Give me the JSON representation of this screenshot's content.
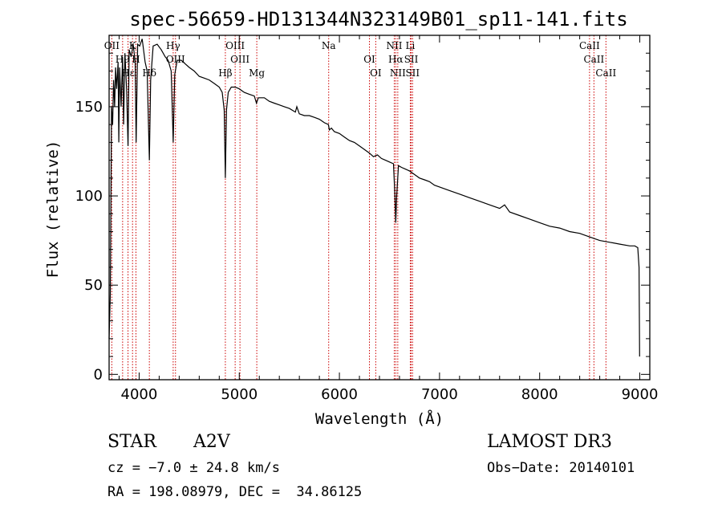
{
  "chart_data": {
    "type": "line",
    "title": "spec-56659-HD131344N323149B01_sp11-141.fits",
    "xlabel": "Wavelength (Å)",
    "ylabel": "Flux (relative)",
    "xlim": [
      3700,
      9100
    ],
    "ylim": [
      -3,
      190
    ],
    "xticks": [
      4000,
      5000,
      6000,
      7000,
      8000,
      9000
    ],
    "yticks": [
      0,
      50,
      100,
      150
    ],
    "series": [
      {
        "name": "spectrum",
        "points": [
          [
            3700,
            20
          ],
          [
            3712,
            45
          ],
          [
            3724,
            150
          ],
          [
            3735,
            140
          ],
          [
            3745,
            165
          ],
          [
            3755,
            150
          ],
          [
            3765,
            172
          ],
          [
            3775,
            160
          ],
          [
            3790,
            175
          ],
          [
            3797,
            130
          ],
          [
            3805,
            172
          ],
          [
            3820,
            150
          ],
          [
            3835,
            178
          ],
          [
            3845,
            140
          ],
          [
            3858,
            180
          ],
          [
            3875,
            160
          ],
          [
            3889,
            128
          ],
          [
            3900,
            182
          ],
          [
            3920,
            178
          ],
          [
            3940,
            185
          ],
          [
            3960,
            175
          ],
          [
            3970,
            130
          ],
          [
            3985,
            185
          ],
          [
            4005,
            184
          ],
          [
            4030,
            188
          ],
          [
            4060,
            175
          ],
          [
            4080,
            170
          ],
          [
            4102,
            120
          ],
          [
            4115,
            165
          ],
          [
            4140,
            184
          ],
          [
            4180,
            185
          ],
          [
            4220,
            182
          ],
          [
            4260,
            178
          ],
          [
            4290,
            176
          ],
          [
            4320,
            170
          ],
          [
            4340,
            130
          ],
          [
            4355,
            168
          ],
          [
            4380,
            176
          ],
          [
            4420,
            176
          ],
          [
            4460,
            174
          ],
          [
            4500,
            172
          ],
          [
            4550,
            170
          ],
          [
            4600,
            167
          ],
          [
            4650,
            166
          ],
          [
            4700,
            165
          ],
          [
            4750,
            163
          ],
          [
            4800,
            161
          ],
          [
            4830,
            158
          ],
          [
            4850,
            148
          ],
          [
            4861,
            110
          ],
          [
            4872,
            148
          ],
          [
            4890,
            158
          ],
          [
            4920,
            161
          ],
          [
            4960,
            161
          ],
          [
            5000,
            160
          ],
          [
            5050,
            158
          ],
          [
            5100,
            157
          ],
          [
            5150,
            156
          ],
          [
            5172,
            152
          ],
          [
            5190,
            155
          ],
          [
            5250,
            155
          ],
          [
            5300,
            153
          ],
          [
            5350,
            152
          ],
          [
            5400,
            151
          ],
          [
            5450,
            150
          ],
          [
            5500,
            149
          ],
          [
            5560,
            147
          ],
          [
            5575,
            150
          ],
          [
            5600,
            146
          ],
          [
            5650,
            145
          ],
          [
            5700,
            145
          ],
          [
            5750,
            144
          ],
          [
            5800,
            143
          ],
          [
            5850,
            141
          ],
          [
            5890,
            140
          ],
          [
            5900,
            137
          ],
          [
            5920,
            138
          ],
          [
            5950,
            136
          ],
          [
            6000,
            135
          ],
          [
            6050,
            133
          ],
          [
            6100,
            131
          ],
          [
            6150,
            130
          ],
          [
            6200,
            128
          ],
          [
            6250,
            126
          ],
          [
            6300,
            124
          ],
          [
            6340,
            122
          ],
          [
            6380,
            123
          ],
          [
            6420,
            121
          ],
          [
            6460,
            120
          ],
          [
            6500,
            119
          ],
          [
            6540,
            118
          ],
          [
            6555,
            100
          ],
          [
            6563,
            85
          ],
          [
            6572,
            100
          ],
          [
            6590,
            117
          ],
          [
            6620,
            116
          ],
          [
            6660,
            115
          ],
          [
            6700,
            114
          ],
          [
            6750,
            112
          ],
          [
            6800,
            110
          ],
          [
            6850,
            109
          ],
          [
            6900,
            108
          ],
          [
            6950,
            106
          ],
          [
            7000,
            105
          ],
          [
            7100,
            103
          ],
          [
            7200,
            101
          ],
          [
            7300,
            99
          ],
          [
            7400,
            97
          ],
          [
            7500,
            95
          ],
          [
            7600,
            93
          ],
          [
            7650,
            95
          ],
          [
            7700,
            91
          ],
          [
            7800,
            89
          ],
          [
            7900,
            87
          ],
          [
            8000,
            85
          ],
          [
            8100,
            83
          ],
          [
            8200,
            82
          ],
          [
            8300,
            80
          ],
          [
            8400,
            79
          ],
          [
            8500,
            77
          ],
          [
            8600,
            75
          ],
          [
            8700,
            74
          ],
          [
            8800,
            73
          ],
          [
            8900,
            72
          ],
          [
            8950,
            72
          ],
          [
            8980,
            71
          ],
          [
            8993,
            60
          ],
          [
            8998,
            10
          ]
        ]
      }
    ],
    "line_markers": [
      {
        "name": "OII",
        "wavelength": 3727
      },
      {
        "name": "H9",
        "wavelength": 3835
      },
      {
        "name": "Hε",
        "wavelength": 3889
      },
      {
        "name": "K",
        "wavelength": 3934
      },
      {
        "name": "H",
        "wavelength": 3968
      },
      {
        "name": "Hδ",
        "wavelength": 4102
      },
      {
        "name": "Hγ",
        "wavelength": 4340
      },
      {
        "name": "OIII",
        "wavelength": 4363
      },
      {
        "name": "Hβ",
        "wavelength": 4861
      },
      {
        "name": "OIII",
        "wavelength": 4959
      },
      {
        "name": "OIII",
        "wavelength": 5007
      },
      {
        "name": "Mg",
        "wavelength": 5175
      },
      {
        "name": "Na",
        "wavelength": 5893
      },
      {
        "name": "OI",
        "wavelength": 6300
      },
      {
        "name": "OI",
        "wavelength": 6363
      },
      {
        "name": "NII",
        "wavelength": 6548
      },
      {
        "name": "Hα",
        "wavelength": 6563
      },
      {
        "name": "NII",
        "wavelength": 6583
      },
      {
        "name": "Li",
        "wavelength": 6708
      },
      {
        "name": "SII",
        "wavelength": 6717
      },
      {
        "name": "SII",
        "wavelength": 6731
      },
      {
        "name": "CaII",
        "wavelength": 8498
      },
      {
        "name": "CaII",
        "wavelength": 8542
      },
      {
        "name": "CaII",
        "wavelength": 8662
      }
    ]
  },
  "info": {
    "object_class": "STAR",
    "subclass": "A2V",
    "survey": "LAMOST DR3",
    "cz": "cz = −7.0 ± 24.8 km/s",
    "obs_date": "Obs−Date: 20140101",
    "coords": "RA = 198.08979, DEC =  34.86125"
  },
  "colors": {
    "marker": "#cc0000",
    "line": "#000000",
    "background": "#ffffff"
  }
}
